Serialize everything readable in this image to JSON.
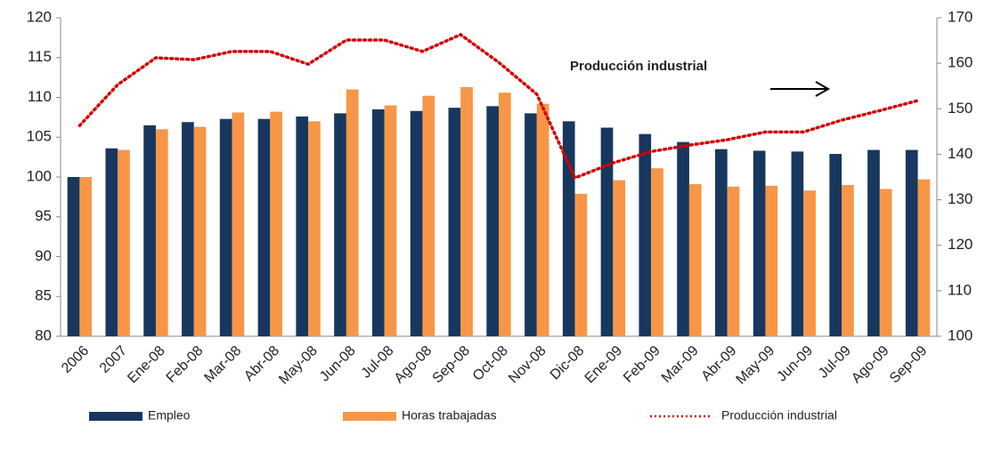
{
  "chart_data": {
    "type": "bar",
    "annotation": "Producción industrial",
    "categories": [
      "2006",
      "2007",
      "Ene-08",
      "Feb-08",
      "Mar-08",
      "Abr-08",
      "May-08",
      "Jun-08",
      "Jul-08",
      "Ago-08",
      "Sep-08",
      "Oct-08",
      "Nov-08",
      "Dic-08",
      "Ene-09",
      "Feb-09",
      "Mar-09",
      "Abr-09",
      "May-09",
      "Jun-09",
      "Jul-09",
      "Ago-09",
      "Sep-09"
    ],
    "series": [
      {
        "name": "Empleo",
        "type": "bar",
        "color": "#17375e",
        "values": [
          100,
          103.6,
          106.5,
          106.9,
          107.3,
          107.3,
          107.6,
          108,
          108.5,
          108.3,
          108.7,
          108.9,
          108,
          107,
          106.2,
          105.4,
          104.4,
          103.5,
          103.3,
          103.2,
          102.9,
          103.4,
          103.4
        ]
      },
      {
        "name": "Horas trabajadas",
        "type": "bar",
        "color": "#f79646",
        "values": [
          100,
          103.4,
          106,
          106.3,
          108.1,
          108.2,
          107,
          111,
          109,
          110.2,
          111.3,
          110.6,
          109.2,
          97.9,
          99.6,
          101.1,
          99.1,
          98.8,
          98.9,
          98.3,
          99,
          98.5,
          99.7
        ]
      },
      {
        "name": "Producción industrial",
        "type": "line",
        "axis": "y2",
        "color": "#d40000",
        "values": [
          146.3,
          155.3,
          161.2,
          160.8,
          162.6,
          162.6,
          159.8,
          165.1,
          165.1,
          162.6,
          166.3,
          160.2,
          153.2,
          134.8,
          138.1,
          140.6,
          142,
          143.2,
          144.9,
          144.9,
          147.5,
          149.6,
          151.8
        ]
      }
    ],
    "ylim": [
      80,
      120
    ],
    "yticks": [
      80,
      85,
      90,
      95,
      100,
      105,
      110,
      115,
      120
    ],
    "y2lim": [
      100,
      170
    ],
    "y2ticks": [
      100,
      110,
      120,
      130,
      140,
      150,
      160,
      170
    ],
    "legend": "bottom"
  }
}
